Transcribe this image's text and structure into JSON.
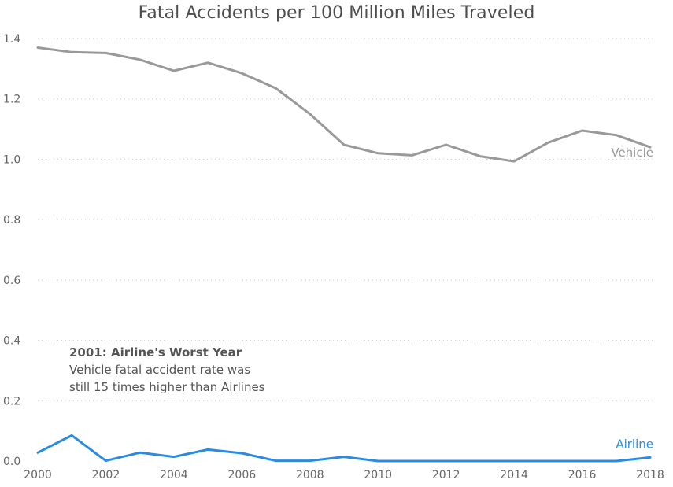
{
  "chart_data": {
    "type": "line",
    "title": "Fatal Accidents per 100 Million Miles Traveled",
    "xlabel": "",
    "ylabel": "",
    "x": [
      2000,
      2001,
      2002,
      2003,
      2004,
      2005,
      2006,
      2007,
      2008,
      2009,
      2010,
      2011,
      2012,
      2013,
      2014,
      2015,
      2016,
      2017,
      2018
    ],
    "xlim": [
      2000,
      2018
    ],
    "ylim": [
      0,
      1.4
    ],
    "x_ticks": [
      "2000",
      "2002",
      "2004",
      "2006",
      "2008",
      "2010",
      "2012",
      "2014",
      "2016",
      "2018"
    ],
    "y_ticks": [
      "0.0",
      "0.2",
      "0.4",
      "0.6",
      "0.8",
      "1.0",
      "1.2",
      "1.4"
    ],
    "grid": "horizontal dotted",
    "series": [
      {
        "name": "Vehicle",
        "color": "#999999",
        "values": [
          1.37,
          1.355,
          1.352,
          1.33,
          1.293,
          1.32,
          1.285,
          1.235,
          1.15,
          1.048,
          1.02,
          1.013,
          1.048,
          1.01,
          0.993,
          1.055,
          1.095,
          1.08,
          1.04
        ]
      },
      {
        "name": "Airline",
        "color": "#2a8ce0",
        "values": [
          0.028,
          0.085,
          0.001,
          0.028,
          0.014,
          0.038,
          0.026,
          0.001,
          0.001,
          0.014,
          0.0,
          0.0,
          0.0,
          0.0,
          0.0,
          0.0,
          0.0,
          0.0,
          0.012
        ]
      }
    ],
    "annotation": {
      "title": "2001: Airline's Worst Year",
      "lines": [
        "Vehicle fatal accident rate was",
        "still 15 times higher than Airlines"
      ]
    }
  }
}
